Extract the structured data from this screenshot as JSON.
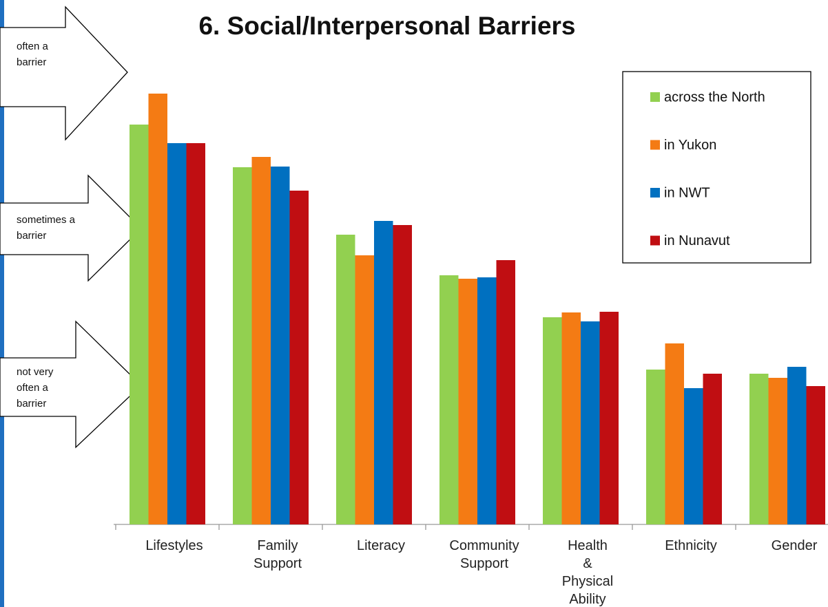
{
  "chart_data": {
    "type": "bar",
    "title": "6. Social/Interpersonal Barriers",
    "annotations": [
      "often a barrier",
      "sometimes a barrier",
      "not very often a barrier"
    ],
    "categories": [
      "Lifestyles",
      "Family Support",
      "Literacy",
      "Community Support",
      "Health & Physical Ability",
      "Ethnicity",
      "Gender"
    ],
    "series": [
      {
        "name": "across the North",
        "color": "#92d050",
        "values": [
          581,
          519,
          421,
          362,
          301,
          225,
          219
        ]
      },
      {
        "name": "in Yukon",
        "color": "#f47b14",
        "values": [
          626,
          534,
          391,
          357,
          308,
          263,
          213
        ]
      },
      {
        "name": "in NWT",
        "color": "#0070c0",
        "values": [
          554,
          520,
          441,
          359,
          295,
          198,
          229
        ]
      },
      {
        "name": "in Nunavut",
        "color": "#c00e12",
        "values": [
          554,
          485,
          435,
          384,
          309,
          219,
          201
        ]
      }
    ],
    "ylim": [
      0,
      630
    ]
  }
}
